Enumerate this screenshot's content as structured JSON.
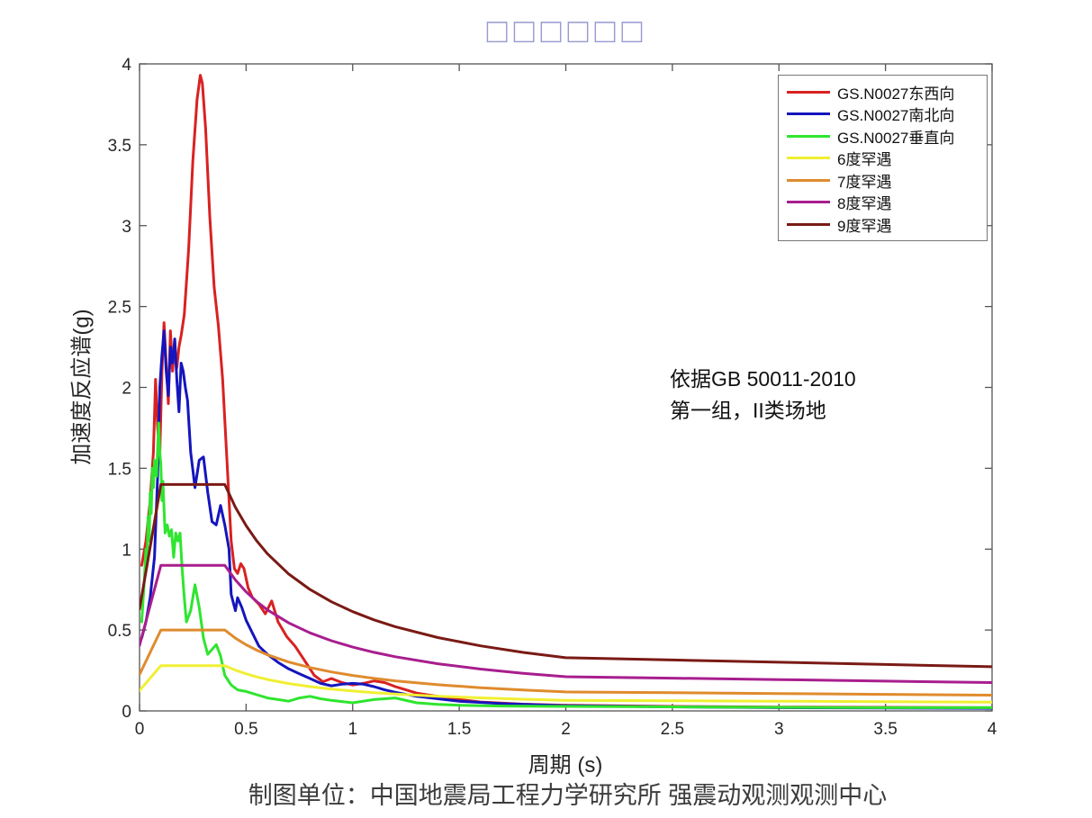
{
  "title": {
    "text": "□□□□□□",
    "color": "#9a9ad2"
  },
  "axes": {
    "xlabel": "周期 (s)",
    "ylabel": "加速度反应谱(g)"
  },
  "annotation": {
    "line1": "依据GB 50011-2010",
    "line2": "第一组，II类场地"
  },
  "caption": "制图单位：中国地震局工程力学研究所 强震动观测观测中心",
  "colors": {
    "frame": "#555555",
    "tick_label": "#262626",
    "title_tofu": "#9a9ad2",
    "red": "#d92121",
    "blue": "#1515bd",
    "green": "#2fe52f",
    "yellow": "#f0ef33",
    "orange": "#df8b2d",
    "magenta": "#a81e8e",
    "darkred": "#7a1a15"
  },
  "chart_data": {
    "type": "line",
    "title": "□□□□□□",
    "xlabel": "周期 (s)",
    "ylabel": "加速度反应谱(g)",
    "xlim": [
      0,
      4
    ],
    "ylim": [
      0,
      4
    ],
    "grid": false,
    "legend_position": "top-right",
    "frame_color": "#555555",
    "annotations": [
      "依据GB 50011-2010",
      "第一组，II类场地"
    ],
    "xticks": {
      "values": [
        0,
        0.5,
        1,
        1.5,
        2,
        2.5,
        3,
        3.5,
        4
      ],
      "labels": [
        "0",
        "0.5",
        "1",
        "1.5",
        "2",
        "2.5",
        "3",
        "3.5",
        "4"
      ]
    },
    "yticks": {
      "values": [
        0,
        0.5,
        1,
        1.5,
        2,
        2.5,
        3,
        3.5,
        4
      ],
      "labels": [
        "0",
        "0.5",
        "1",
        "1.5",
        "2",
        "2.5",
        "3",
        "3.5",
        "4"
      ]
    },
    "series": [
      {
        "id": "gs-n0027-ew",
        "name": "GS.N0027东西向",
        "color": "#d92121",
        "peak": 3.93,
        "x": [
          0.01,
          0.03,
          0.05,
          0.065,
          0.075,
          0.085,
          0.095,
          0.105,
          0.115,
          0.125,
          0.135,
          0.145,
          0.155,
          0.165,
          0.175,
          0.185,
          0.195,
          0.21,
          0.23,
          0.25,
          0.27,
          0.285,
          0.295,
          0.31,
          0.33,
          0.35,
          0.37,
          0.39,
          0.41,
          0.43,
          0.445,
          0.46,
          0.475,
          0.49,
          0.51,
          0.53,
          0.56,
          0.59,
          0.62,
          0.65,
          0.69,
          0.73,
          0.78,
          0.82,
          0.86,
          0.9,
          0.95,
          1.0,
          1.05,
          1.1,
          1.15,
          1.2,
          1.25,
          1.3,
          1.4,
          1.5,
          1.6,
          1.8,
          2.0,
          2.5,
          3.0,
          3.5,
          4.0
        ],
        "y": [
          0.9,
          1.05,
          1.3,
          1.6,
          2.05,
          1.75,
          1.58,
          2.1,
          2.4,
          2.15,
          1.9,
          2.35,
          2.1,
          2.28,
          2.12,
          2.25,
          2.32,
          2.45,
          2.85,
          3.4,
          3.78,
          3.93,
          3.88,
          3.6,
          3.05,
          2.62,
          2.38,
          2.05,
          1.55,
          1.05,
          0.88,
          0.85,
          0.91,
          0.88,
          0.76,
          0.7,
          0.66,
          0.6,
          0.68,
          0.55,
          0.46,
          0.4,
          0.3,
          0.22,
          0.18,
          0.2,
          0.175,
          0.16,
          0.17,
          0.185,
          0.175,
          0.15,
          0.13,
          0.11,
          0.09,
          0.07,
          0.055,
          0.042,
          0.035,
          0.028,
          0.024,
          0.022,
          0.02
        ]
      },
      {
        "id": "gs-n0027-ns",
        "name": "GS.N0027南北向",
        "color": "#1515bd",
        "peak": 2.35,
        "x": [
          0.01,
          0.03,
          0.05,
          0.07,
          0.085,
          0.095,
          0.105,
          0.115,
          0.125,
          0.135,
          0.145,
          0.155,
          0.165,
          0.175,
          0.185,
          0.195,
          0.205,
          0.215,
          0.225,
          0.24,
          0.26,
          0.28,
          0.3,
          0.32,
          0.34,
          0.36,
          0.38,
          0.4,
          0.42,
          0.43,
          0.45,
          0.46,
          0.48,
          0.5,
          0.53,
          0.56,
          0.6,
          0.65,
          0.7,
          0.75,
          0.8,
          0.85,
          0.9,
          0.95,
          1.0,
          1.05,
          1.1,
          1.15,
          1.2,
          1.3,
          1.4,
          1.5,
          1.7,
          2.0,
          2.5,
          3.0,
          3.5,
          4.0
        ],
        "y": [
          0.45,
          0.55,
          0.7,
          0.95,
          1.45,
          2.0,
          2.2,
          2.35,
          2.1,
          1.95,
          2.25,
          2.15,
          2.3,
          2.05,
          1.85,
          2.15,
          2.1,
          2.0,
          1.92,
          1.6,
          1.38,
          1.55,
          1.57,
          1.35,
          1.17,
          1.15,
          1.27,
          1.15,
          1.0,
          0.72,
          0.62,
          0.7,
          0.64,
          0.56,
          0.48,
          0.4,
          0.35,
          0.3,
          0.26,
          0.23,
          0.2,
          0.17,
          0.155,
          0.165,
          0.17,
          0.165,
          0.15,
          0.13,
          0.115,
          0.09,
          0.075,
          0.06,
          0.045,
          0.032,
          0.025,
          0.02,
          0.018,
          0.016
        ]
      },
      {
        "id": "gs-n0027-ud",
        "name": "GS.N0027垂直向",
        "color": "#2fe52f",
        "peak": 1.78,
        "x": [
          0.01,
          0.02,
          0.03,
          0.035,
          0.04,
          0.045,
          0.05,
          0.055,
          0.06,
          0.065,
          0.07,
          0.08,
          0.085,
          0.09,
          0.095,
          0.1,
          0.105,
          0.11,
          0.115,
          0.12,
          0.13,
          0.14,
          0.15,
          0.16,
          0.17,
          0.18,
          0.19,
          0.2,
          0.21,
          0.22,
          0.24,
          0.26,
          0.28,
          0.3,
          0.32,
          0.34,
          0.36,
          0.38,
          0.4,
          0.43,
          0.46,
          0.5,
          0.55,
          0.6,
          0.65,
          0.7,
          0.75,
          0.8,
          0.85,
          0.9,
          1.0,
          1.1,
          1.2,
          1.3,
          1.4,
          1.5,
          1.7,
          2.0,
          2.5,
          3.0,
          3.5,
          4.0
        ],
        "y": [
          0.55,
          0.75,
          1.0,
          0.92,
          1.2,
          1.05,
          1.35,
          1.22,
          1.5,
          1.38,
          1.55,
          1.45,
          1.62,
          1.78,
          1.6,
          1.52,
          1.3,
          1.42,
          1.25,
          1.1,
          1.15,
          1.08,
          1.12,
          0.95,
          1.1,
          1.05,
          1.1,
          0.88,
          0.7,
          0.55,
          0.62,
          0.78,
          0.64,
          0.45,
          0.35,
          0.38,
          0.41,
          0.34,
          0.22,
          0.16,
          0.13,
          0.12,
          0.1,
          0.08,
          0.07,
          0.06,
          0.08,
          0.09,
          0.075,
          0.065,
          0.05,
          0.07,
          0.08,
          0.05,
          0.04,
          0.035,
          0.03,
          0.028,
          0.025,
          0.022,
          0.02,
          0.02
        ]
      },
      {
        "id": "rare-6",
        "name": "6度罕遇",
        "color": "#f0ef33",
        "alpha_max": 0.28,
        "x": [
          0,
          0.1,
          0.4,
          0.45,
          0.5,
          0.55,
          0.6,
          0.7,
          0.8,
          0.9,
          1.0,
          1.1,
          1.2,
          1.4,
          1.6,
          1.8,
          2.0,
          2.5,
          3.0,
          3.5,
          4.0
        ],
        "y": [
          0.126,
          0.28,
          0.28,
          0.2518,
          0.2291,
          0.2102,
          0.1944,
          0.1692,
          0.1501,
          0.135,
          0.1228,
          0.1126,
          0.1042,
          0.0907,
          0.0804,
          0.0723,
          0.0658,
          0.063,
          0.0602,
          0.0574,
          0.0546
        ]
      },
      {
        "id": "rare-7",
        "name": "7度罕遇",
        "color": "#df8b2d",
        "alpha_max": 0.5,
        "x": [
          0,
          0.1,
          0.4,
          0.45,
          0.5,
          0.55,
          0.6,
          0.7,
          0.8,
          0.9,
          1.0,
          1.1,
          1.2,
          1.4,
          1.6,
          1.8,
          2.0,
          2.5,
          3.0,
          3.5,
          4.0
        ],
        "y": [
          0.225,
          0.5,
          0.5,
          0.4497,
          0.4091,
          0.3754,
          0.3472,
          0.3022,
          0.268,
          0.241,
          0.2192,
          0.2012,
          0.186,
          0.1619,
          0.1436,
          0.1292,
          0.1175,
          0.1125,
          0.1075,
          0.1025,
          0.0975
        ]
      },
      {
        "id": "rare-8",
        "name": "8度罕遇",
        "color": "#a81e8e",
        "alpha_max": 0.9,
        "x": [
          0,
          0.1,
          0.4,
          0.45,
          0.5,
          0.55,
          0.6,
          0.7,
          0.8,
          0.9,
          1.0,
          1.1,
          1.2,
          1.4,
          1.6,
          1.8,
          2.0,
          2.5,
          3.0,
          3.5,
          4.0
        ],
        "y": [
          0.405,
          0.9,
          0.9,
          0.8095,
          0.7363,
          0.6757,
          0.6249,
          0.5439,
          0.4823,
          0.4338,
          0.3946,
          0.3621,
          0.3348,
          0.2914,
          0.2585,
          0.2325,
          0.2114,
          0.2024,
          0.1934,
          0.1844,
          0.1754
        ]
      },
      {
        "id": "rare-9",
        "name": "9度罕遇",
        "color": "#7a1a15",
        "alpha_max": 1.4,
        "x": [
          0,
          0.1,
          0.4,
          0.45,
          0.5,
          0.55,
          0.6,
          0.7,
          0.8,
          0.9,
          1.0,
          1.1,
          1.2,
          1.4,
          1.6,
          1.8,
          2.0,
          2.5,
          3.0,
          3.5,
          4.0
        ],
        "y": [
          0.63,
          1.4,
          1.4,
          1.2592,
          1.1453,
          1.0511,
          0.972,
          0.846,
          0.7503,
          0.6748,
          0.6138,
          0.5632,
          0.5208,
          0.4533,
          0.4021,
          0.3616,
          0.3289,
          0.3149,
          0.3009,
          0.2869,
          0.2729
        ]
      }
    ]
  }
}
